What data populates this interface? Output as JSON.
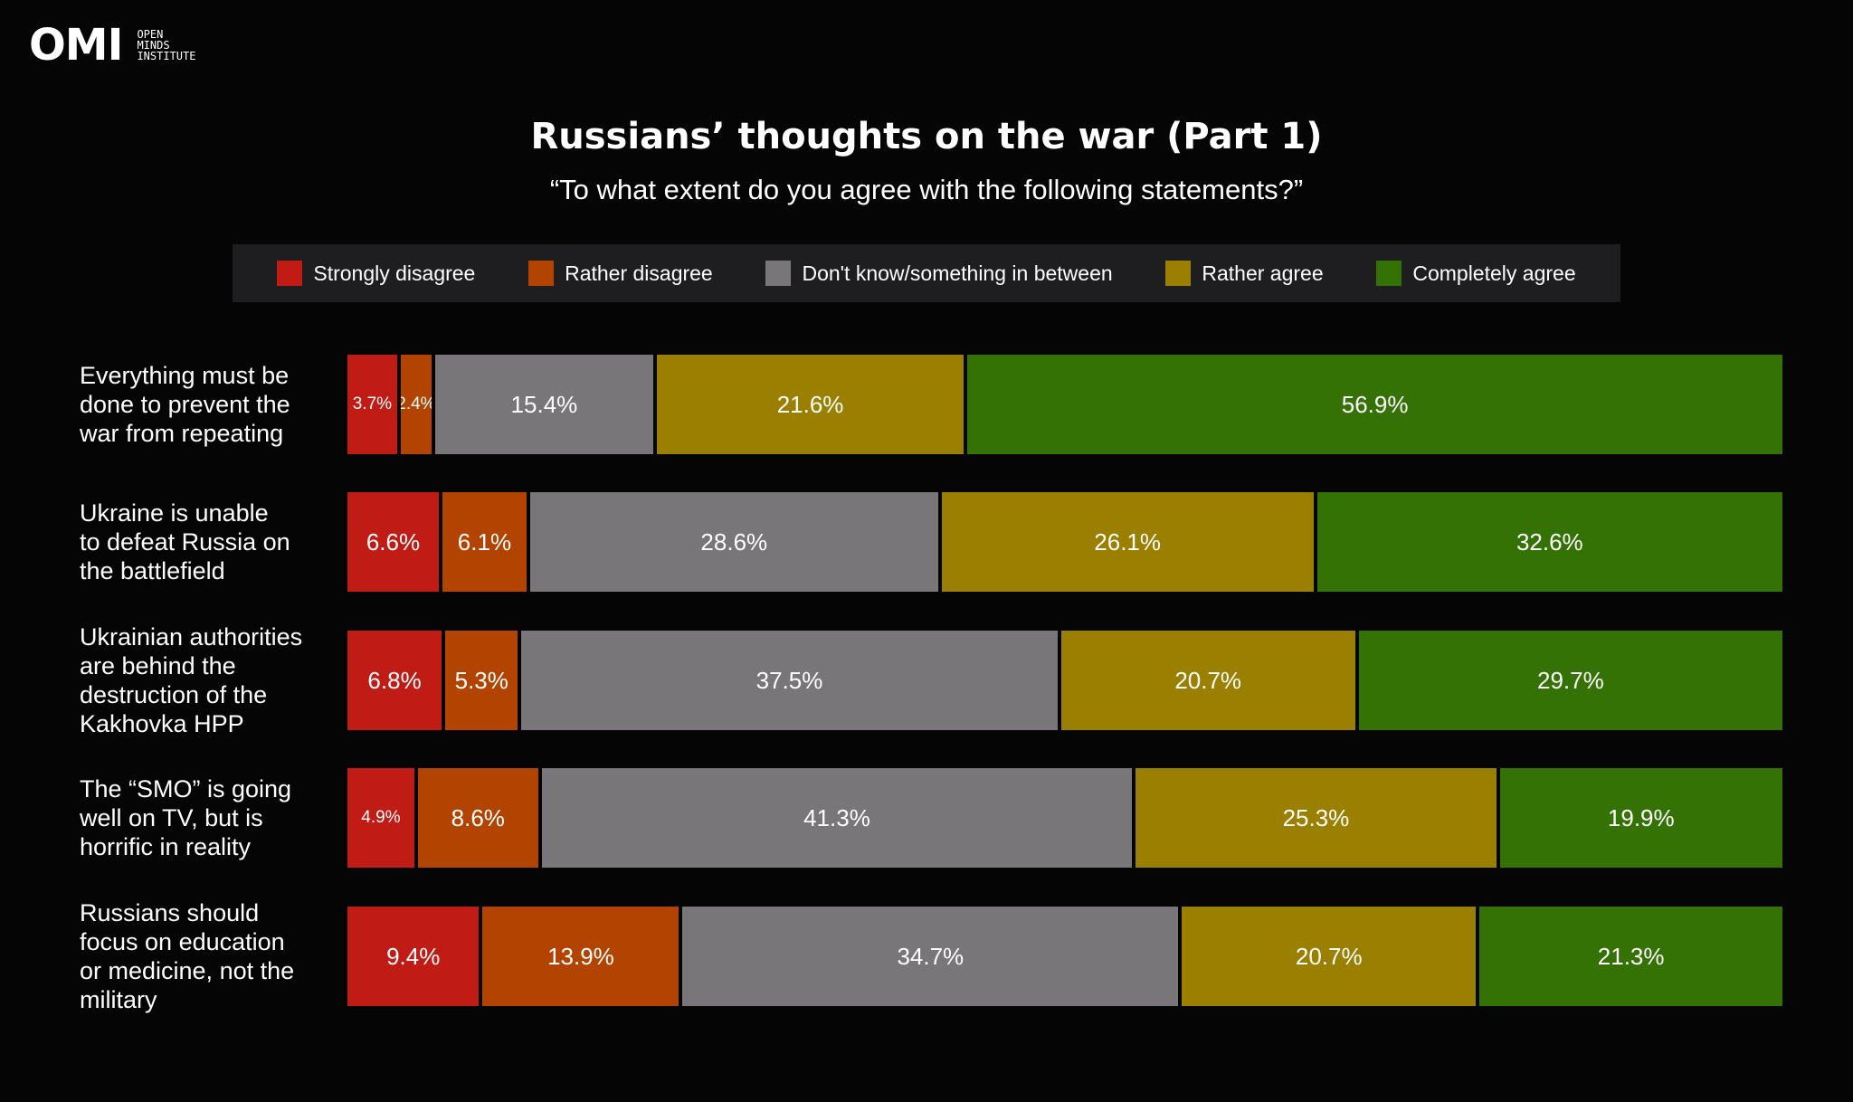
{
  "logo": {
    "mark": "OMI",
    "lines": [
      "OPEN",
      "MINDS",
      "INSTITUTE"
    ]
  },
  "header": {
    "title": "Russians’ thoughts on the war (Part 1)",
    "subtitle": "“To what extent do you agree with the following statements?”"
  },
  "colors": {
    "strongly_disagree": "#c01b14",
    "rather_disagree": "#b34300",
    "dont_know": "#787679",
    "rather_agree": "#9b7f00",
    "completely_agree": "#357205",
    "background": "#050505",
    "legend_bg": "#1e1e20"
  },
  "chart_data": {
    "type": "bar",
    "orientation": "horizontal",
    "stacked": true,
    "title": "Russians’ thoughts on the war (Part 1)",
    "subtitle": "“To what extent do you agree with the following statements?”",
    "legend_position": "top",
    "categories": [
      "Everything must be done to prevent the war from repeating",
      "Ukraine is unable to defeat Russia on the battlefield",
      "Ukrainian authorities are behind the destruction of the Kakhovka HPP",
      "The “SMO” is going well on TV, but is horrific in reality",
      "Russians should focus on education or medicine, not the military"
    ],
    "category_lines": [
      [
        "Everything must be",
        "done to prevent the",
        "war from repeating"
      ],
      [
        "Ukraine is unable",
        "to defeat Russia on",
        "the battlefield"
      ],
      [
        "Ukrainian authorities",
        "are behind the",
        "destruction of the",
        "Kakhovka HPP"
      ],
      [
        "The “SMO” is going",
        "well on TV, but is",
        "horrific in reality"
      ],
      [
        "Russians should",
        "focus on education",
        "or medicine, not the",
        "military"
      ]
    ],
    "series": [
      {
        "name": "Strongly disagree",
        "color_key": "strongly_disagree",
        "values": [
          3.7,
          6.6,
          6.8,
          4.9,
          9.4
        ]
      },
      {
        "name": "Rather disagree",
        "color_key": "rather_disagree",
        "values": [
          2.4,
          6.1,
          5.3,
          8.6,
          13.9
        ]
      },
      {
        "name": "Don't know/something in between",
        "color_key": "dont_know",
        "values": [
          15.4,
          28.6,
          37.5,
          41.3,
          34.7
        ]
      },
      {
        "name": "Rather agree",
        "color_key": "rather_agree",
        "values": [
          21.6,
          26.1,
          20.7,
          25.3,
          20.7
        ]
      },
      {
        "name": "Completely agree",
        "color_key": "completely_agree",
        "values": [
          56.9,
          32.6,
          29.7,
          19.9,
          21.3
        ]
      }
    ],
    "value_suffix": "%"
  }
}
